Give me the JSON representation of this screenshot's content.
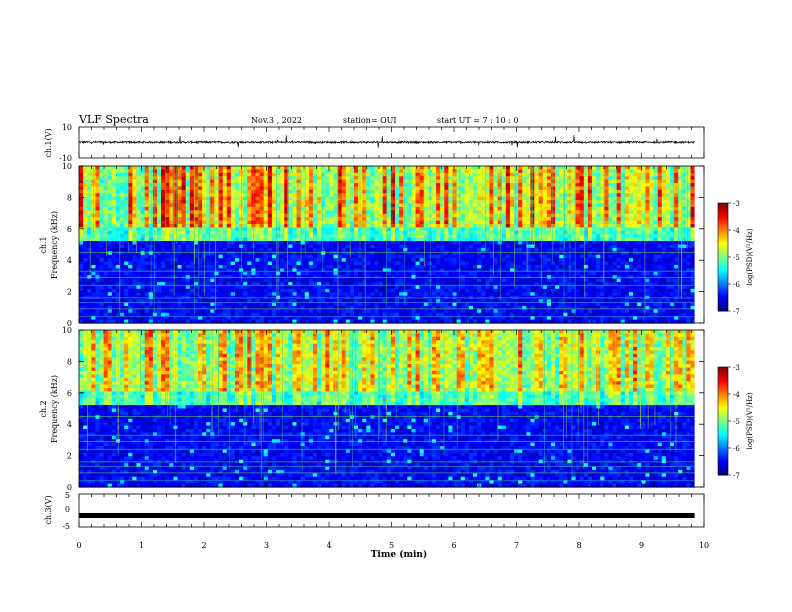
{
  "header": {
    "title": "VLF Spectra",
    "date": "Nov.3 , 2022",
    "station": "station= OUI",
    "start": "start UT = 7 : 10 : 0"
  },
  "colors": {
    "background": "#ffffff",
    "axis": "#000000",
    "trace": "#000000"
  },
  "chart_data": [
    {
      "type": "line",
      "name": "ch1-waveform",
      "ylabel": "ch.1(V)",
      "ylim": [
        -10,
        10
      ],
      "y_ticks": [
        "10",
        "-10"
      ],
      "x_range": [
        0,
        9.85
      ]
    },
    {
      "type": "heatmap",
      "name": "ch1-spectrogram",
      "ylabel_top": "ch.1",
      "ylabel": "Frequency (kHz)",
      "ylim": [
        0,
        10
      ],
      "y_ticks": [
        "0",
        "2",
        "4",
        "6",
        "8",
        "10"
      ],
      "colorbar": {
        "label": "log(PSD)(V²/Hz)",
        "ticks": [
          "-3",
          "-4",
          "-5",
          "-6",
          "-7"
        ],
        "range": [
          -7,
          -3
        ]
      }
    },
    {
      "type": "heatmap",
      "name": "ch2-spectrogram",
      "ylabel_top": "ch.2",
      "ylabel": "Frequency (kHz)",
      "ylim": [
        0,
        10
      ],
      "y_ticks": [
        "0",
        "2",
        "4",
        "6",
        "8",
        "10"
      ],
      "colorbar": {
        "label": "log(PSD)(V²/Hz)",
        "ticks": [
          "-3",
          "-4",
          "-5",
          "-6",
          "-7"
        ],
        "range": [
          -7,
          -3
        ]
      }
    },
    {
      "type": "line",
      "name": "ch3-waveform",
      "ylabel": "ch.3(V)",
      "ylim": [
        -5,
        5
      ],
      "y_ticks": [
        "5",
        "0",
        "-5"
      ],
      "y_value": -1.5,
      "x_range": [
        0,
        9.85
      ]
    }
  ],
  "x_axis": {
    "label": "Time (min)",
    "ticks": [
      "0",
      "1",
      "2",
      "3",
      "4",
      "5",
      "6",
      "7",
      "8",
      "9",
      "10"
    ],
    "range": [
      0,
      10
    ]
  }
}
